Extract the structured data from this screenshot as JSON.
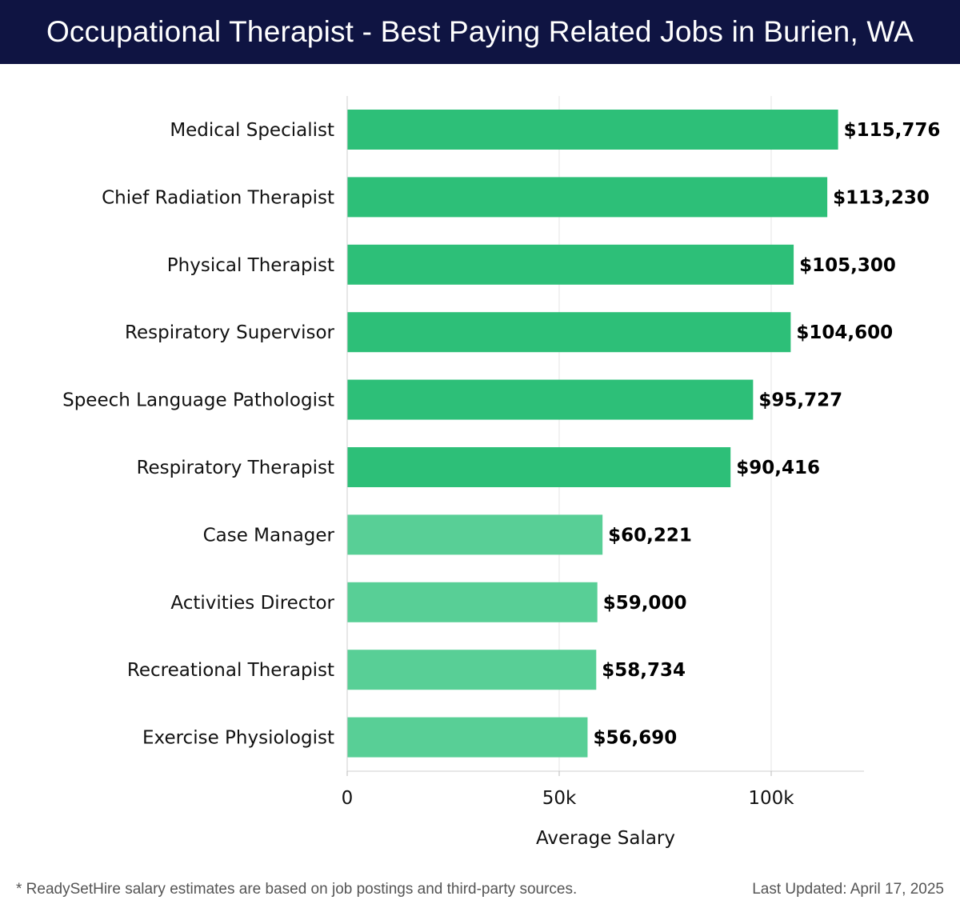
{
  "header": {
    "title": "Occupational Therapist - Best Paying Related Jobs in Burien, WA"
  },
  "chart_data": {
    "type": "bar",
    "orientation": "horizontal",
    "categories": [
      "Medical Specialist",
      "Chief Radiation Therapist",
      "Physical Therapist",
      "Respiratory Supervisor",
      "Speech Language Pathologist",
      "Respiratory Therapist",
      "Case Manager",
      "Activities Director",
      "Recreational Therapist",
      "Exercise Physiologist"
    ],
    "values": [
      115776,
      113230,
      105300,
      104600,
      95727,
      90416,
      60221,
      59000,
      58734,
      56690
    ],
    "value_labels": [
      "$115,776",
      "$113,230",
      "$105,300",
      "$104,600",
      "$95,727",
      "$90,416",
      "$60,221",
      "$59,000",
      "$58,734",
      "$56,690"
    ],
    "xlabel": "Average Salary",
    "ylabel": "",
    "xlim": [
      0,
      122000
    ],
    "xticks": [
      0,
      50000,
      100000
    ],
    "xtick_labels": [
      "0",
      "50k",
      "100k"
    ],
    "grid": true,
    "colors": {
      "high": "#2dbf78",
      "low": "#58cf96"
    }
  },
  "footer": {
    "note": "* ReadySetHire salary estimates are based on job postings and third-party sources.",
    "updated": "Last Updated: April 17, 2025"
  }
}
